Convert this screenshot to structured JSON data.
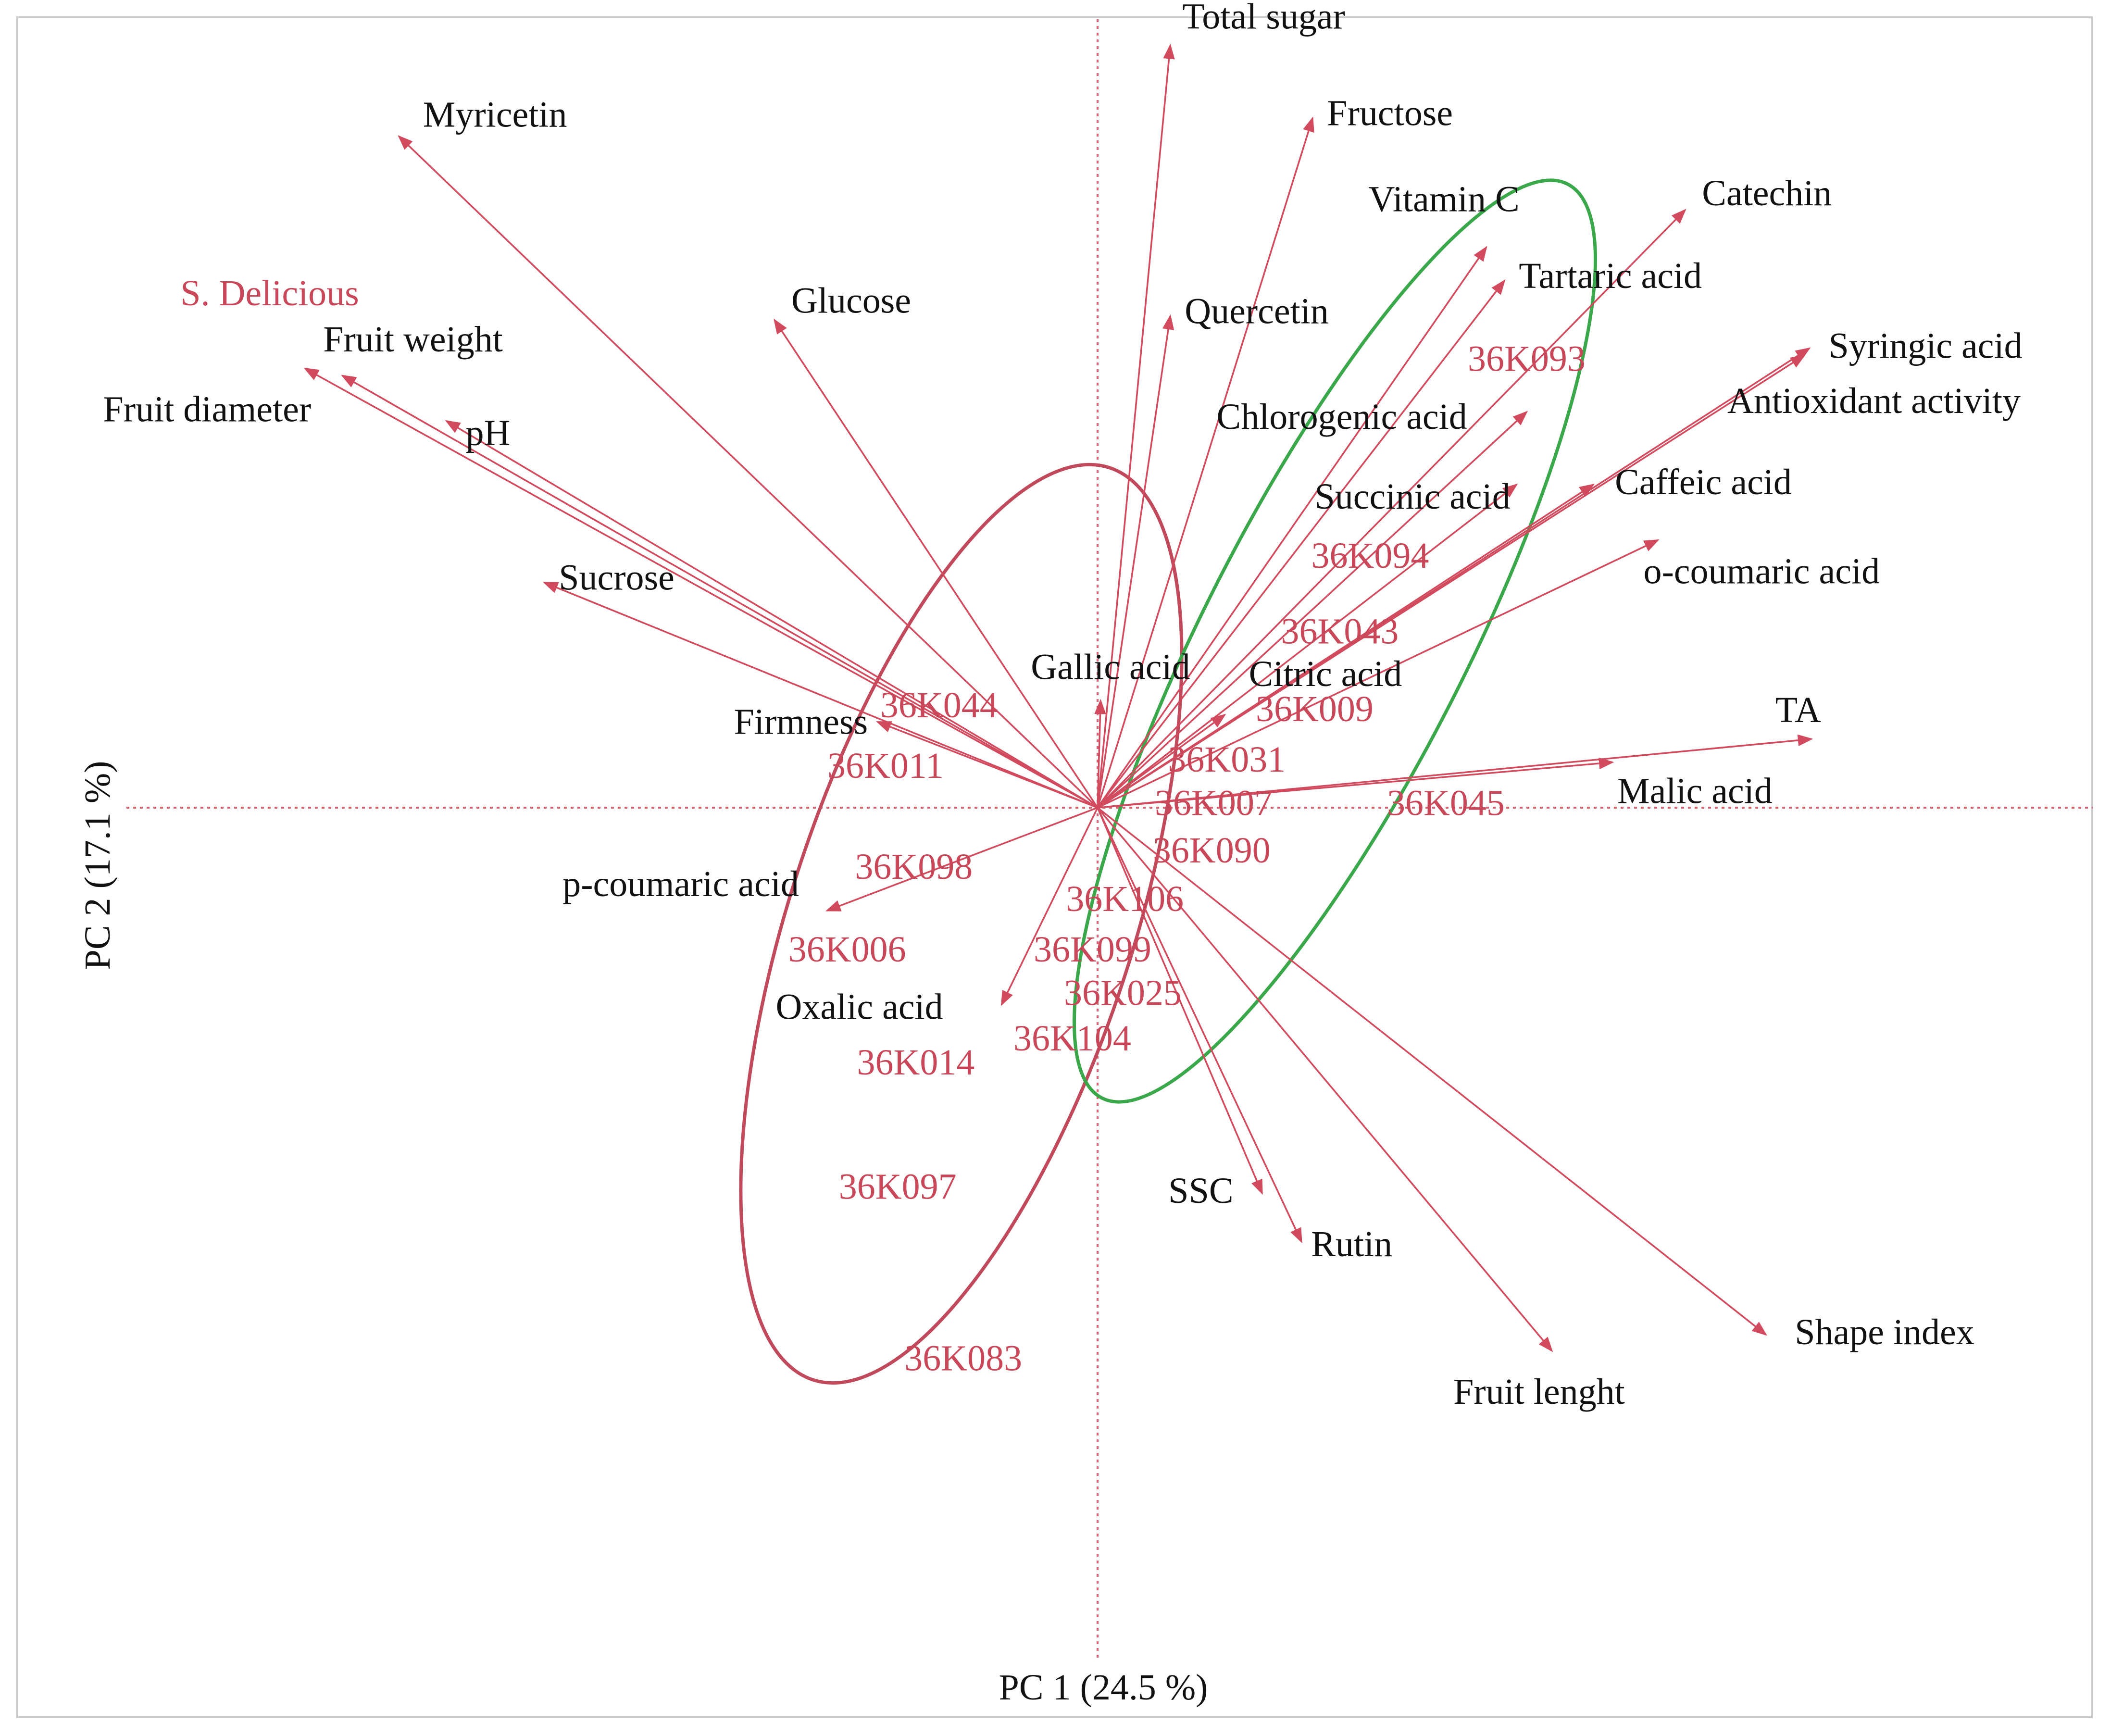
{
  "chart_data": {
    "type": "scatter",
    "subtype": "pca-biplot",
    "xlabel": "PC 1  (24.5 %)",
    "ylabel": "PC 2  (17.1 %)",
    "xlim": [
      -1.0,
      1.0
    ],
    "ylim": [
      -1.0,
      1.0
    ],
    "colors": {
      "arrow": "#d24a5e",
      "observation": "#c8485a",
      "ellipse_red": "#c04a5c",
      "ellipse_green": "#3aa84a",
      "axis": "#d86070",
      "variable_text": "#111111"
    },
    "variables": [
      {
        "name": "Myricetin",
        "x": -0.692,
        "y": 0.665
      },
      {
        "name": "Fruit weight",
        "x": -0.748,
        "y": 0.428
      },
      {
        "name": "Fruit diameter",
        "x": -0.785,
        "y": 0.435
      },
      {
        "name": "pH",
        "x": -0.645,
        "y": 0.383
      },
      {
        "name": "Glucose",
        "x": -0.32,
        "y": 0.483
      },
      {
        "name": "Sucrose",
        "x": -0.548,
        "y": 0.223
      },
      {
        "name": "Firmness",
        "x": -0.218,
        "y": 0.085
      },
      {
        "name": "p-coumaric acid",
        "x": -0.268,
        "y": -0.102
      },
      {
        "name": "Oxalic acid",
        "x": -0.095,
        "y": -0.195
      },
      {
        "name": "Total sugar",
        "x": 0.072,
        "y": 0.755
      },
      {
        "name": "Fructose",
        "x": 0.213,
        "y": 0.683
      },
      {
        "name": "Quercetin",
        "x": 0.072,
        "y": 0.487
      },
      {
        "name": "Vitamin C",
        "x": 0.385,
        "y": 0.555
      },
      {
        "name": "Tartaric acid",
        "x": 0.403,
        "y": 0.522
      },
      {
        "name": "Chlorogenic acid",
        "x": 0.425,
        "y": 0.392
      },
      {
        "name": "Succinic acid",
        "x": 0.415,
        "y": 0.32
      },
      {
        "name": "Catechin",
        "x": 0.582,
        "y": 0.592
      },
      {
        "name": "Syringic acid",
        "x": 0.705,
        "y": 0.455
      },
      {
        "name": "Antioxidant activity",
        "x": 0.7,
        "y": 0.448
      },
      {
        "name": "Caffeic acid",
        "x": 0.491,
        "y": 0.32
      },
      {
        "name": "o-coumaric acid",
        "x": 0.555,
        "y": 0.265
      },
      {
        "name": "Gallic acid",
        "x": 0.003,
        "y": 0.106
      },
      {
        "name": "Citric acid",
        "x": 0.126,
        "y": 0.092
      },
      {
        "name": "TA",
        "x": 0.707,
        "y": 0.068
      },
      {
        "name": "Malic acid",
        "x": 0.51,
        "y": 0.045
      },
      {
        "name": "SSC",
        "x": 0.163,
        "y": -0.382
      },
      {
        "name": "Rutin",
        "x": 0.202,
        "y": -0.43
      },
      {
        "name": "Fruit lenght",
        "x": 0.45,
        "y": -0.538
      },
      {
        "name": "Shape index",
        "x": 0.662,
        "y": -0.522
      }
    ],
    "observations": [
      {
        "name": "S. Delicious",
        "x": -0.82,
        "y": 0.51
      },
      {
        "name": "36K093",
        "x": 0.425,
        "y": 0.445
      },
      {
        "name": "36K094",
        "x": 0.27,
        "y": 0.25
      },
      {
        "name": "36K043",
        "x": 0.24,
        "y": 0.175
      },
      {
        "name": "36K009",
        "x": 0.215,
        "y": 0.098
      },
      {
        "name": "36K044",
        "x": -0.157,
        "y": 0.102
      },
      {
        "name": "36K011",
        "x": -0.21,
        "y": 0.042
      },
      {
        "name": "36K031",
        "x": 0.128,
        "y": 0.048
      },
      {
        "name": "36K007",
        "x": 0.115,
        "y": 0.005
      },
      {
        "name": "36K045",
        "x": 0.345,
        "y": 0.005
      },
      {
        "name": "36K090",
        "x": 0.113,
        "y": -0.042
      },
      {
        "name": "36K098",
        "x": -0.182,
        "y": -0.058
      },
      {
        "name": "36K106",
        "x": 0.027,
        "y": -0.09
      },
      {
        "name": "36K006",
        "x": -0.248,
        "y": -0.14
      },
      {
        "name": "36K099",
        "x": -0.005,
        "y": -0.14
      },
      {
        "name": "36K025",
        "x": 0.025,
        "y": -0.183
      },
      {
        "name": "36K104",
        "x": -0.025,
        "y": -0.228
      },
      {
        "name": "36K014",
        "x": -0.18,
        "y": -0.252
      },
      {
        "name": "36K097",
        "x": -0.198,
        "y": -0.375
      },
      {
        "name": "36K083",
        "x": -0.133,
        "y": -0.545
      }
    ],
    "ellipses": [
      {
        "color_key": "ellipse_red",
        "cx": -0.135,
        "cy": -0.115,
        "rx": 0.17,
        "ry": 0.475,
        "angle": -18
      },
      {
        "color_key": "ellipse_green",
        "cx": 0.235,
        "cy": 0.165,
        "rx": 0.13,
        "ry": 0.508,
        "angle": -27
      }
    ]
  }
}
